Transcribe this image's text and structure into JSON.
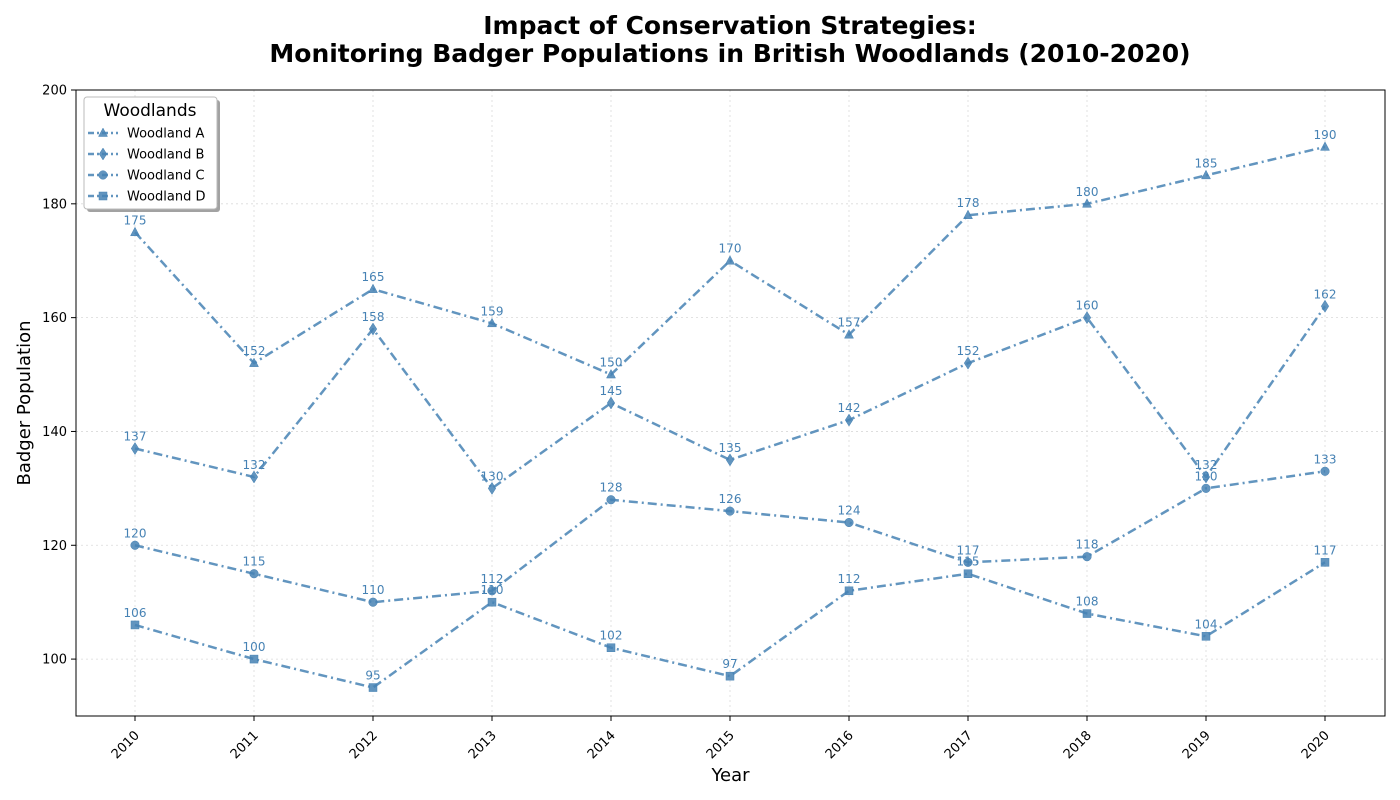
{
  "chart_data": {
    "type": "line",
    "title_lines": [
      "Impact of Conservation Strategies:",
      "Monitoring Badger Populations in British Woodlands (2010-2020)"
    ],
    "xlabel": "Year",
    "ylabel": "Badger Population",
    "x": [
      "2010",
      "2011",
      "2012",
      "2013",
      "2014",
      "2015",
      "2016",
      "2017",
      "2018",
      "2019",
      "2020"
    ],
    "ylim": [
      90,
      200
    ],
    "yticks": [
      100,
      120,
      140,
      160,
      180,
      200
    ],
    "grid": true,
    "legend_title": "Woodlands",
    "legend_position": "top-left",
    "line_color": "#4682b4",
    "series": [
      {
        "name": "Woodland A",
        "marker": "triangle",
        "values": [
          175,
          152,
          165,
          159,
          150,
          170,
          157,
          178,
          180,
          185,
          190
        ]
      },
      {
        "name": "Woodland B",
        "marker": "diamond",
        "values": [
          137,
          132,
          158,
          130,
          145,
          135,
          142,
          152,
          160,
          132,
          162
        ]
      },
      {
        "name": "Woodland C",
        "marker": "circle",
        "values": [
          120,
          115,
          110,
          112,
          128,
          126,
          124,
          117,
          118,
          130,
          133
        ]
      },
      {
        "name": "Woodland D",
        "marker": "square",
        "values": [
          106,
          100,
          95,
          110,
          102,
          97,
          112,
          115,
          108,
          104,
          117
        ]
      }
    ]
  }
}
